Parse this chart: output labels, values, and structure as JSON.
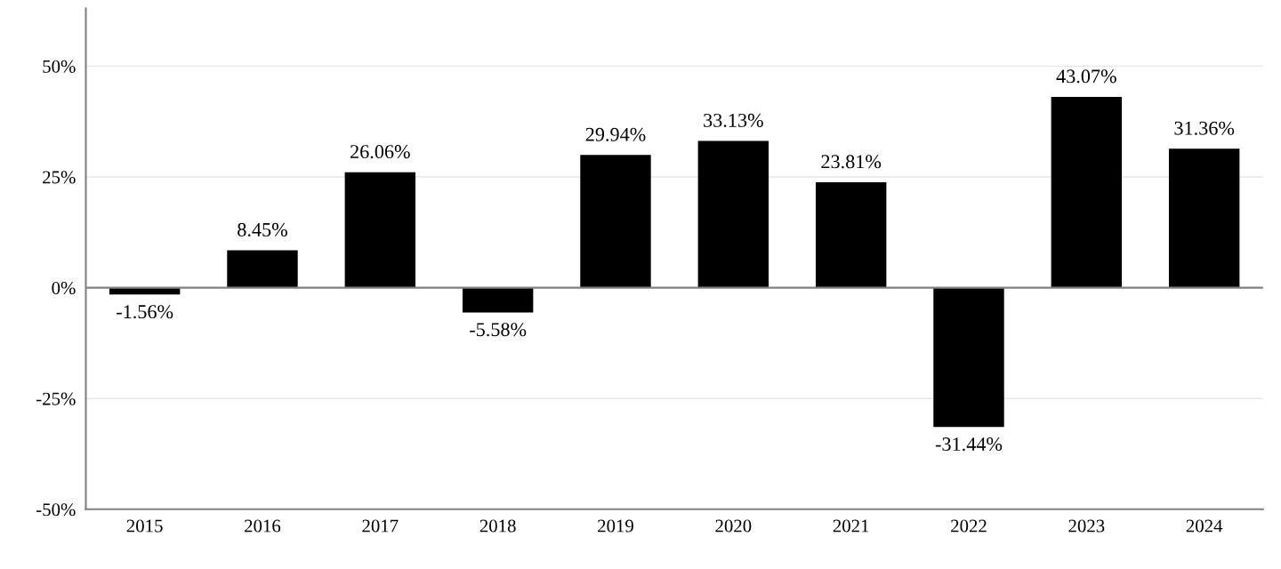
{
  "chart_data": {
    "type": "bar",
    "categories": [
      "2015",
      "2016",
      "2017",
      "2018",
      "2019",
      "2020",
      "2021",
      "2022",
      "2023",
      "2024"
    ],
    "values": [
      -1.56,
      8.45,
      26.06,
      -5.58,
      29.94,
      33.13,
      23.81,
      -31.44,
      43.07,
      31.36
    ],
    "value_labels": [
      "-1.56%",
      "8.45%",
      "26.06%",
      "-5.58%",
      "29.94%",
      "33.13%",
      "23.81%",
      "-31.44%",
      "43.07%",
      "31.36%"
    ],
    "color": "#000000",
    "ylim": [
      -50,
      63
    ],
    "yticks": [
      {
        "value": -50,
        "label": "-50%"
      },
      {
        "value": -25,
        "label": "-25%"
      },
      {
        "value": 0,
        "label": "0%"
      },
      {
        "value": 25,
        "label": "25%"
      },
      {
        "value": 50,
        "label": "50%"
      }
    ],
    "ref_lines": [
      {
        "axis": "y",
        "value": 0,
        "label": null,
        "color": "#808080"
      }
    ],
    "grid": "y",
    "legend": false
  }
}
